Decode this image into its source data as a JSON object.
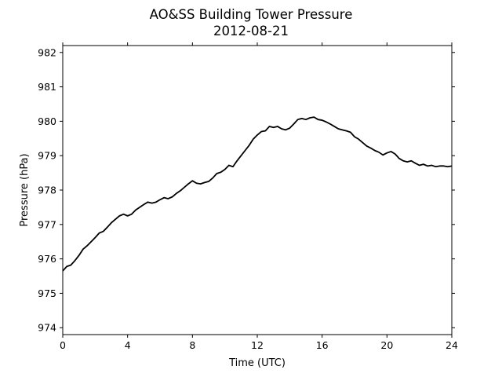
{
  "chart_data": {
    "type": "line",
    "title": "AO&SS Building Tower Pressure",
    "subtitle": "2012-08-21",
    "xlabel": "Time (UTC)",
    "ylabel": "Pressure (hPa)",
    "xlim": [
      0,
      24
    ],
    "ylim": [
      973.8,
      982.2
    ],
    "x_ticks": [
      0,
      4,
      8,
      12,
      16,
      20,
      24
    ],
    "x_tick_labels": [
      "0",
      "4",
      "8",
      "12",
      "16",
      "20",
      "24"
    ],
    "y_ticks": [
      974,
      975,
      976,
      977,
      978,
      979,
      980,
      981,
      982
    ],
    "y_tick_labels": [
      "974",
      "975",
      "976",
      "977",
      "978",
      "979",
      "980",
      "981",
      "982"
    ],
    "grid": false,
    "line_color": "#000000",
    "series": [
      {
        "x": [
          0,
          0.25,
          0.5,
          0.75,
          1.0,
          1.25,
          1.5,
          1.75,
          2.0,
          2.25,
          2.5,
          2.75,
          3.0,
          3.25,
          3.5,
          3.75,
          4.0,
          4.25,
          4.5,
          4.75,
          5.0,
          5.25,
          5.5,
          5.75,
          6.0,
          6.25,
          6.5,
          6.75,
          7.0,
          7.25,
          7.5,
          7.75,
          8.0,
          8.25,
          8.5,
          8.75,
          9.0,
          9.25,
          9.5,
          9.75,
          10.0,
          10.25,
          10.5,
          10.75,
          11.0,
          11.25,
          11.5,
          11.75,
          12.0,
          12.25,
          12.5,
          12.75,
          13.0,
          13.25,
          13.5,
          13.75,
          14.0,
          14.25,
          14.5,
          14.75,
          15.0,
          15.25,
          15.5,
          15.75,
          16.0,
          16.25,
          16.5,
          16.75,
          17.0,
          17.25,
          17.5,
          17.75,
          18.0,
          18.25,
          18.5,
          18.75,
          19.0,
          19.25,
          19.5,
          19.75,
          20.0,
          20.25,
          20.5,
          20.75,
          21.0,
          21.25,
          21.5,
          21.75,
          22.0,
          22.25,
          22.5,
          22.75,
          23.0,
          23.25,
          23.5,
          23.75,
          24.0
        ],
        "values": [
          975.65,
          975.78,
          975.82,
          975.95,
          976.1,
          976.28,
          976.38,
          976.5,
          976.62,
          976.75,
          976.8,
          976.92,
          977.05,
          977.15,
          977.25,
          977.3,
          977.25,
          977.3,
          977.42,
          977.5,
          977.58,
          977.65,
          977.62,
          977.65,
          977.72,
          977.78,
          977.75,
          977.8,
          977.9,
          977.98,
          978.08,
          978.18,
          978.27,
          978.2,
          978.18,
          978.22,
          978.25,
          978.35,
          978.48,
          978.52,
          978.6,
          978.72,
          978.68,
          978.85,
          979.0,
          979.15,
          979.3,
          979.48,
          979.6,
          979.7,
          979.72,
          979.85,
          979.82,
          979.85,
          979.78,
          979.75,
          979.8,
          979.92,
          980.05,
          980.08,
          980.05,
          980.1,
          980.12,
          980.05,
          980.03,
          979.98,
          979.92,
          979.85,
          979.78,
          979.75,
          979.72,
          979.68,
          979.55,
          979.48,
          979.38,
          979.28,
          979.22,
          979.15,
          979.1,
          979.02,
          979.08,
          979.12,
          979.05,
          978.92,
          978.85,
          978.82,
          978.85,
          978.78,
          978.72,
          978.75,
          978.7,
          978.72,
          978.68,
          978.7,
          978.7,
          978.68,
          978.7
        ]
      }
    ]
  }
}
